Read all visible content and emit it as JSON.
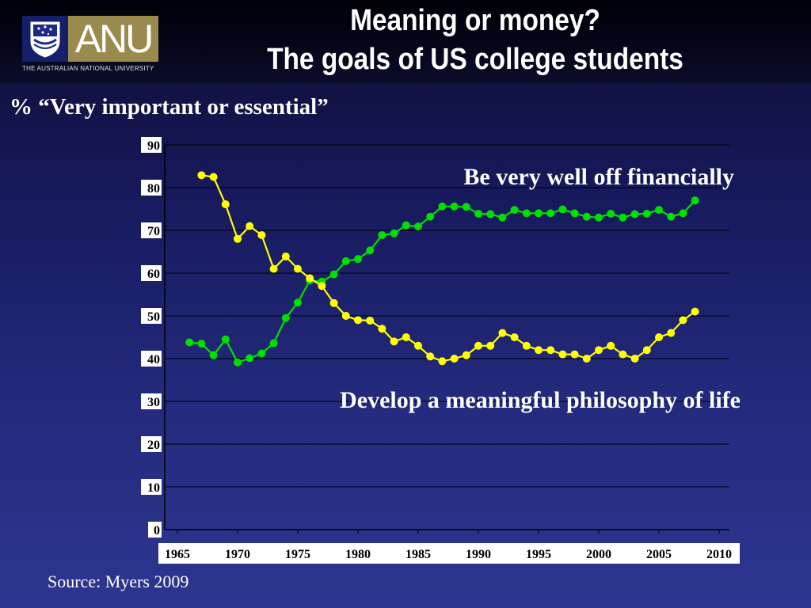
{
  "slide": {
    "title_line1": "Meaning or money?",
    "title_line2": "The goals of US college students",
    "y_caption": "% “Very important or essential”",
    "source": "Source: Myers 2009"
  },
  "logo": {
    "wordmark": "ANU",
    "tagline": "THE AUSTRALIAN NATIONAL UNIVERSITY"
  },
  "colors": {
    "financial": "#00e000",
    "philosophy": "#ffff00",
    "gridline": "#000000",
    "text": "#ffffff"
  },
  "chart_data": {
    "type": "line",
    "title": "",
    "xlabel": "",
    "ylabel": "",
    "xlim": [
      1965,
      2010
    ],
    "ylim": [
      0,
      90
    ],
    "x_ticks": [
      "1965",
      "1970",
      "1975",
      "1980",
      "1985",
      "1990",
      "1995",
      "2000",
      "2005",
      "2010"
    ],
    "y_ticks": [
      "0",
      "10",
      "20",
      "30",
      "40",
      "50",
      "60",
      "70",
      "80",
      "90"
    ],
    "grid": "horizontal",
    "annotations": [
      {
        "text": "Be very well off financially",
        "series": 0
      },
      {
        "text": "Develop a meaningful philosophy of life",
        "series": 1
      }
    ],
    "series": [
      {
        "name": "Be very well off financially",
        "color": "#00e000",
        "points": [
          [
            1966,
            43.8
          ],
          [
            1967,
            43.5
          ],
          [
            1968,
            40.8
          ],
          [
            1969,
            44.5
          ],
          [
            1970,
            39.1
          ],
          [
            1971,
            40.1
          ],
          [
            1972,
            41.2
          ],
          [
            1973,
            43.6
          ],
          [
            1974,
            49.5
          ],
          [
            1975,
            53.1
          ],
          [
            1976,
            58.3
          ],
          [
            1977,
            58.0
          ],
          [
            1978,
            59.7
          ],
          [
            1979,
            62.8
          ],
          [
            1980,
            63.3
          ],
          [
            1981,
            65.3
          ],
          [
            1982,
            68.9
          ],
          [
            1983,
            69.3
          ],
          [
            1984,
            71.2
          ],
          [
            1985,
            70.9
          ],
          [
            1986,
            73.2
          ],
          [
            1987,
            75.6
          ],
          [
            1988,
            75.6
          ],
          [
            1989,
            75.5
          ],
          [
            1990,
            73.9
          ],
          [
            1991,
            73.8
          ],
          [
            1992,
            73.0
          ],
          [
            1993,
            74.8
          ],
          [
            1994,
            74.0
          ],
          [
            1995,
            74.0
          ],
          [
            1996,
            74.0
          ],
          [
            1997,
            74.9
          ],
          [
            1998,
            74.0
          ],
          [
            1999,
            73.2
          ],
          [
            2000,
            73.0
          ],
          [
            2001,
            73.9
          ],
          [
            2002,
            73.0
          ],
          [
            2003,
            73.8
          ],
          [
            2004,
            73.9
          ],
          [
            2005,
            74.8
          ],
          [
            2006,
            73.2
          ],
          [
            2007,
            74.0
          ],
          [
            2008,
            77.0
          ]
        ]
      },
      {
        "name": "Develop a meaningful philosophy of life",
        "color": "#ffff00",
        "points": [
          [
            1967,
            82.9
          ],
          [
            1968,
            82.5
          ],
          [
            1969,
            76.1
          ],
          [
            1970,
            68.0
          ],
          [
            1971,
            71.0
          ],
          [
            1972,
            68.9
          ],
          [
            1973,
            61.0
          ],
          [
            1974,
            63.9
          ],
          [
            1975,
            61.0
          ],
          [
            1976,
            58.8
          ],
          [
            1977,
            57.0
          ],
          [
            1978,
            53.0
          ],
          [
            1979,
            50.0
          ],
          [
            1980,
            49.0
          ],
          [
            1981,
            48.9
          ],
          [
            1982,
            47.0
          ],
          [
            1983,
            44.0
          ],
          [
            1984,
            45.0
          ],
          [
            1985,
            43.0
          ],
          [
            1986,
            40.5
          ],
          [
            1987,
            39.4
          ],
          [
            1988,
            40.0
          ],
          [
            1989,
            40.8
          ],
          [
            1990,
            43.0
          ],
          [
            1991,
            43.0
          ],
          [
            1992,
            46.0
          ],
          [
            1993,
            45.0
          ],
          [
            1994,
            43.0
          ],
          [
            1995,
            42.0
          ],
          [
            1996,
            42.0
          ],
          [
            1997,
            41.0
          ],
          [
            1998,
            41.0
          ],
          [
            1999,
            40.0
          ],
          [
            2000,
            42.0
          ],
          [
            2001,
            43.0
          ],
          [
            2002,
            41.0
          ],
          [
            2003,
            40.0
          ],
          [
            2004,
            42.0
          ],
          [
            2005,
            45.0
          ],
          [
            2006,
            46.0
          ],
          [
            2007,
            49.0
          ],
          [
            2008,
            51.0
          ]
        ]
      }
    ]
  }
}
